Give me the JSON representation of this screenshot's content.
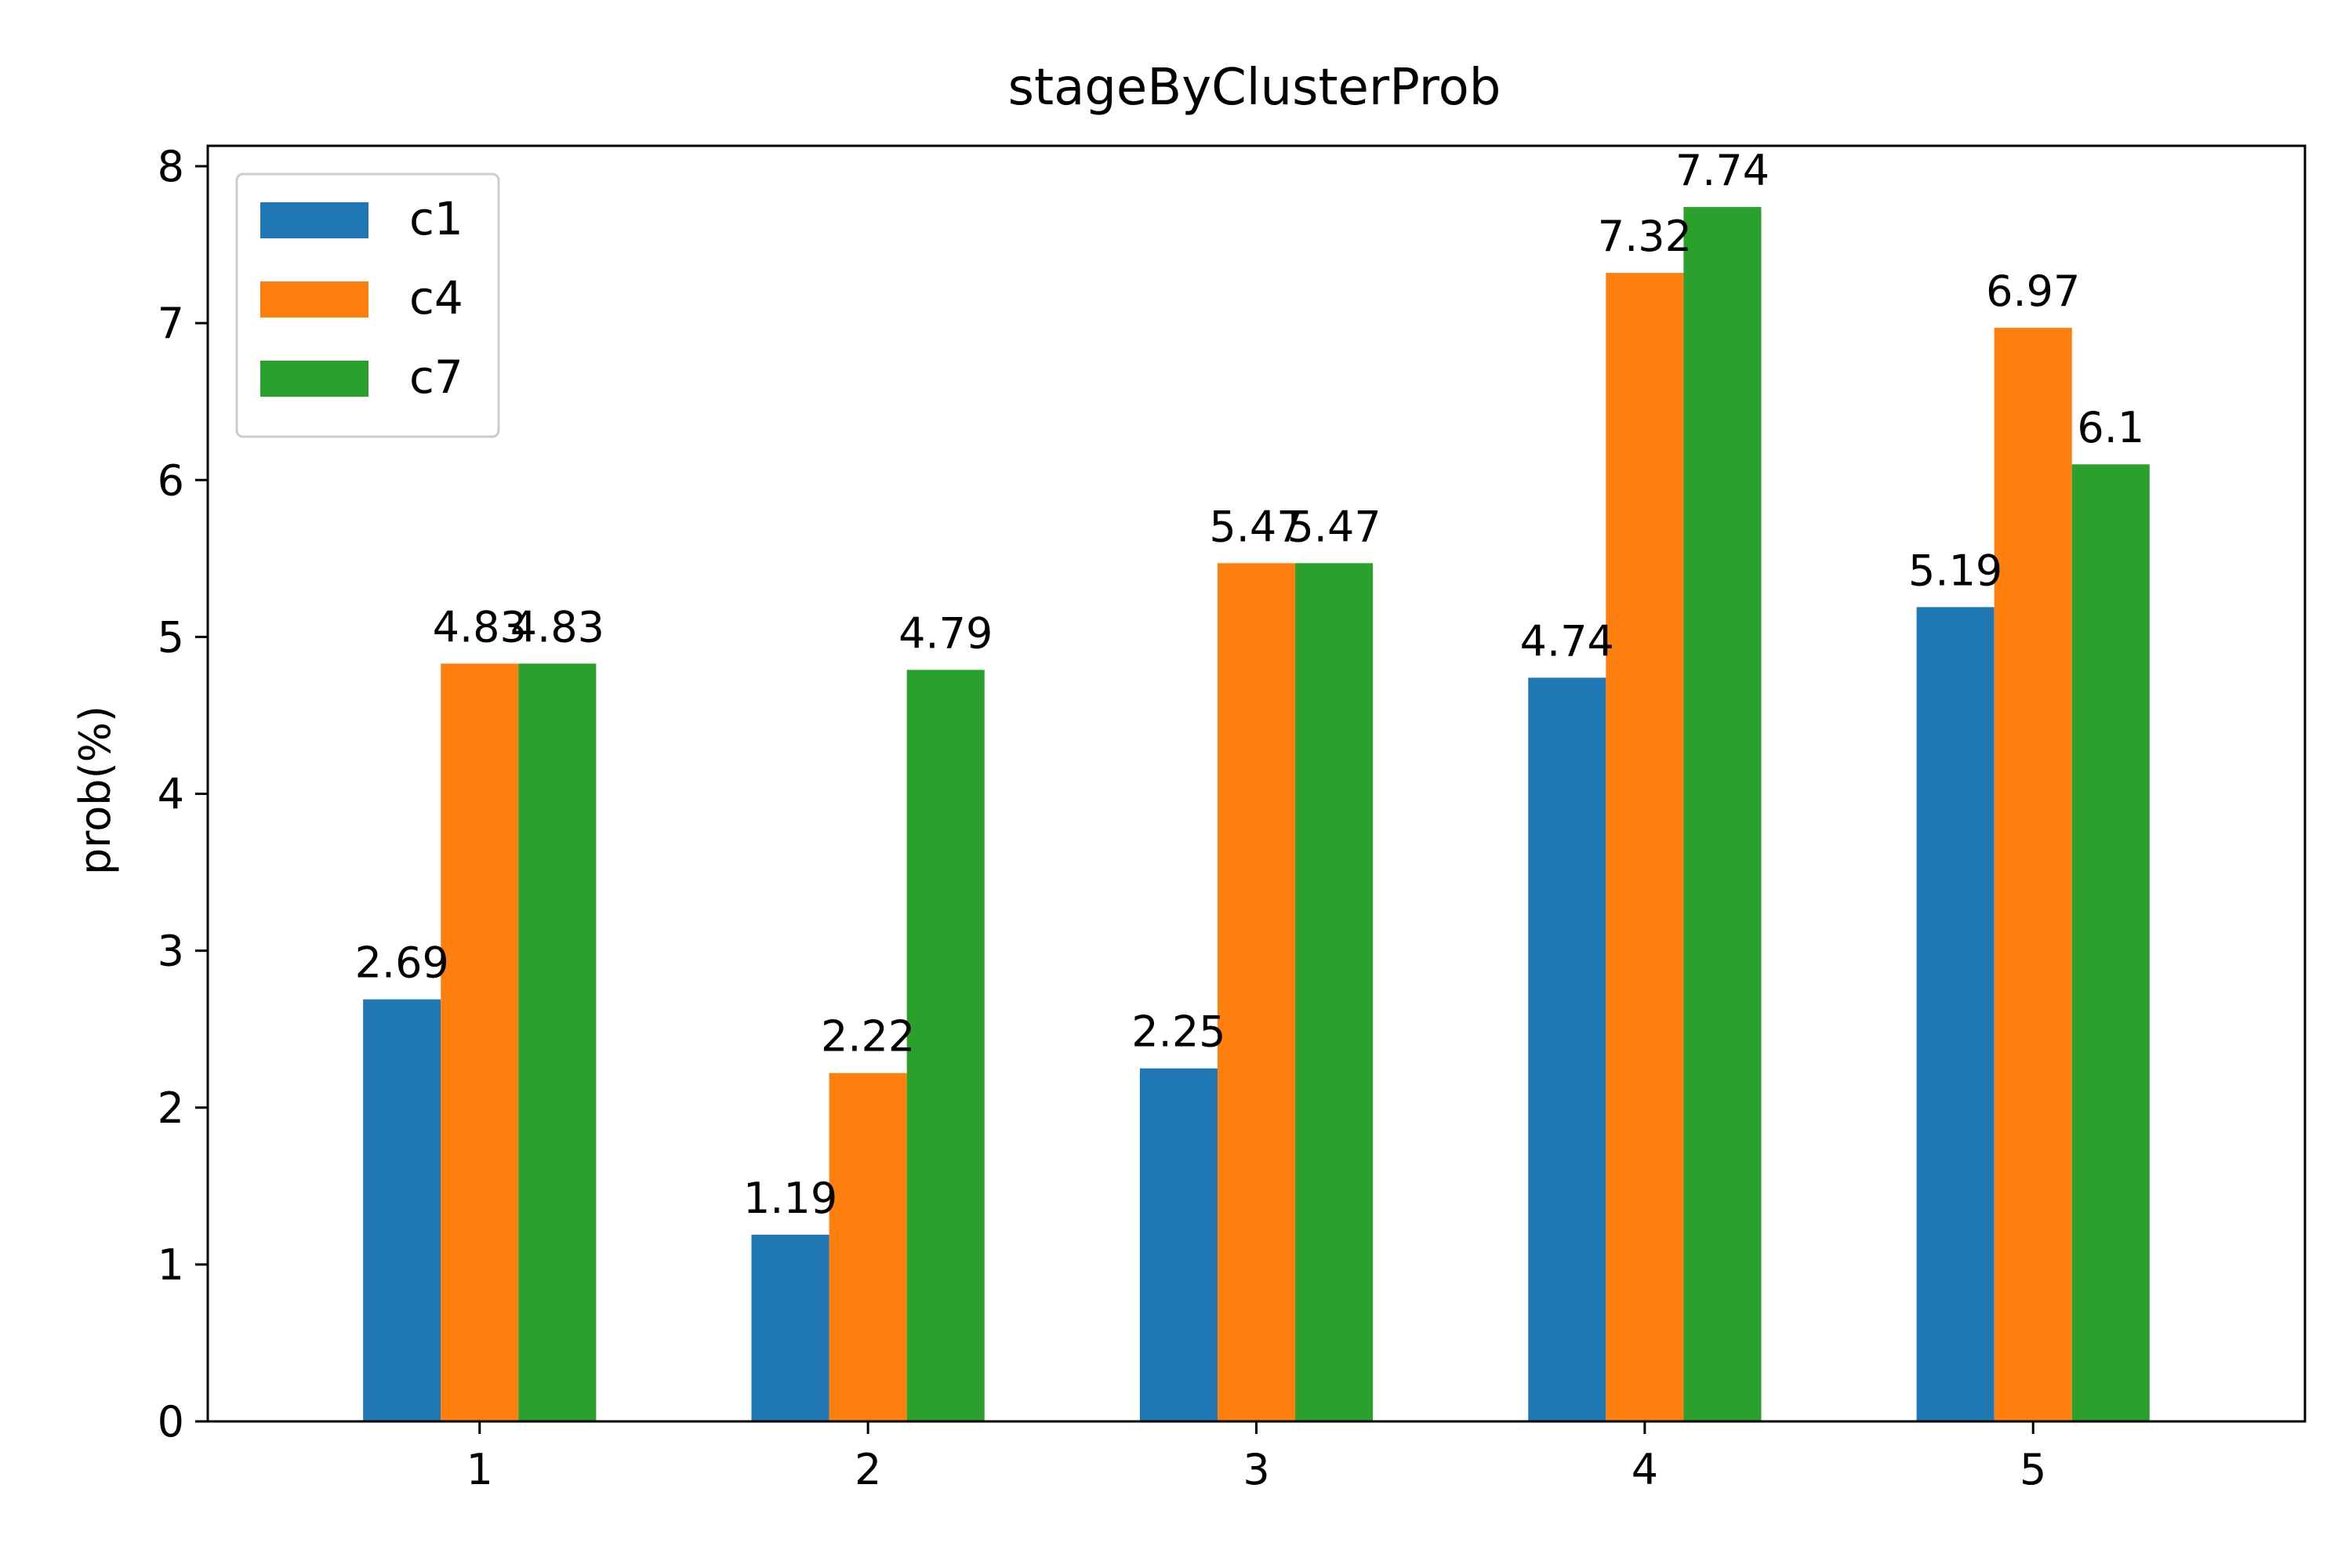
{
  "chart_data": {
    "type": "bar",
    "title": "stageByClusterProb",
    "xlabel": "",
    "ylabel": "prob(%)",
    "categories": [
      "1",
      "2",
      "3",
      "4",
      "5"
    ],
    "ylim": [
      0,
      8.13
    ],
    "yticks": [
      0,
      1,
      2,
      3,
      4,
      5,
      6,
      7,
      8
    ],
    "series": [
      {
        "name": "c1",
        "color": "#1f77b4",
        "values": [
          2.69,
          1.19,
          2.25,
          4.74,
          5.19
        ]
      },
      {
        "name": "c4",
        "color": "#ff7f0e",
        "values": [
          4.83,
          2.22,
          5.47,
          7.32,
          6.97
        ]
      },
      {
        "name": "c7",
        "color": "#2ca02c",
        "values": [
          4.83,
          4.79,
          5.47,
          7.74,
          6.1
        ]
      }
    ],
    "legend_position": "top-left",
    "grid": false
  }
}
